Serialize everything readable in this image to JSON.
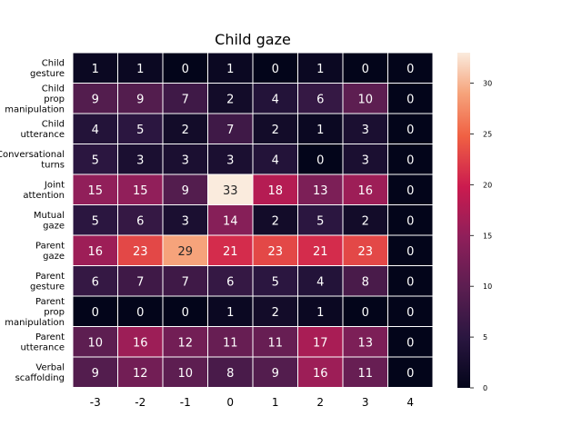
{
  "chart_data": {
    "type": "heatmap",
    "title": "Child gaze",
    "xlabel": "",
    "ylabel": "",
    "x_categories": [
      "-3",
      "-2",
      "-1",
      "0",
      "1",
      "2",
      "3",
      "4"
    ],
    "y_categories": [
      [
        "Child",
        "gesture"
      ],
      [
        "Child",
        "prop",
        "manipulation"
      ],
      [
        "Child",
        "utterance"
      ],
      [
        "Conversational",
        "turns"
      ],
      [
        "Joint",
        "attention"
      ],
      [
        "Mutual",
        "gaze"
      ],
      [
        "Parent",
        "gaze"
      ],
      [
        "Parent",
        "gesture"
      ],
      [
        "Parent",
        "prop",
        "manipulation"
      ],
      [
        "Parent",
        "utterance"
      ],
      [
        "Verbal",
        "scaffolding"
      ]
    ],
    "values": [
      [
        1,
        1,
        0,
        1,
        0,
        1,
        0,
        0
      ],
      [
        9,
        9,
        7,
        2,
        4,
        6,
        10,
        0
      ],
      [
        4,
        5,
        2,
        7,
        2,
        1,
        3,
        0
      ],
      [
        5,
        3,
        3,
        3,
        4,
        0,
        3,
        0
      ],
      [
        15,
        15,
        9,
        33,
        18,
        13,
        16,
        0
      ],
      [
        5,
        6,
        3,
        14,
        2,
        5,
        2,
        0
      ],
      [
        16,
        23,
        29,
        21,
        23,
        21,
        23,
        0
      ],
      [
        6,
        7,
        7,
        6,
        5,
        4,
        8,
        0
      ],
      [
        0,
        0,
        0,
        1,
        2,
        1,
        0,
        0
      ],
      [
        10,
        16,
        12,
        11,
        11,
        17,
        13,
        0
      ],
      [
        9,
        12,
        10,
        8,
        9,
        16,
        11,
        0
      ]
    ],
    "colormap": "rocket",
    "vmin": 0,
    "vmax": 33,
    "colorbar_ticks": [
      0,
      5,
      10,
      15,
      20,
      25,
      30
    ],
    "colorbar_position": "right",
    "annotated": true,
    "cell_border_color": "#ffffff"
  }
}
